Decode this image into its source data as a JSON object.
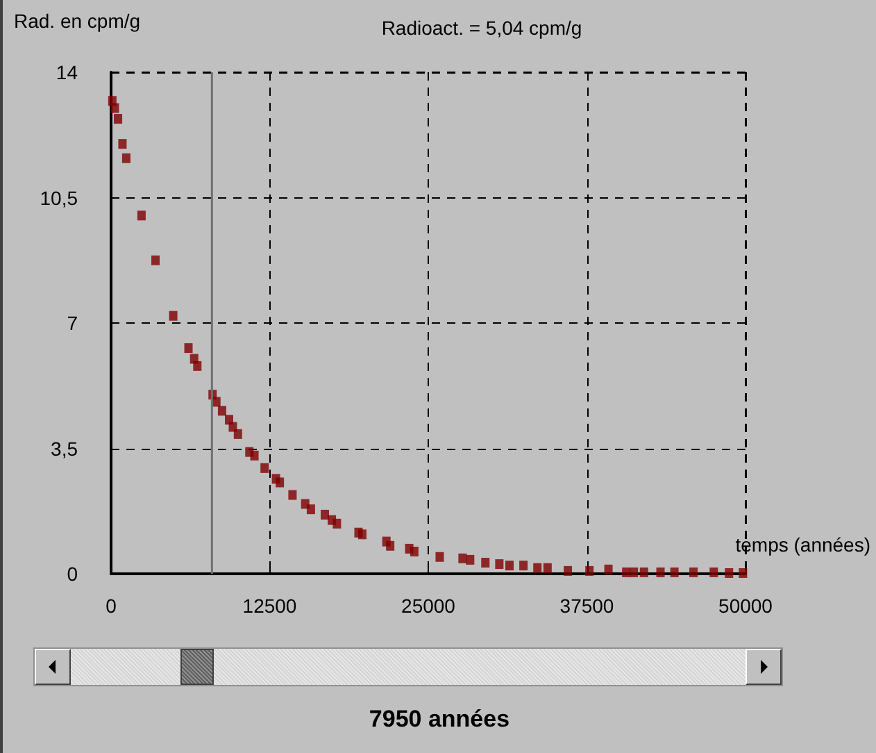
{
  "chart_data": {
    "type": "scatter",
    "title": "Radioact. = 5,04 cpm/g",
    "ylabel": "Rad. en cpm/g",
    "xlabel": "temps (années)",
    "x": [
      100,
      300,
      550,
      900,
      1200,
      2400,
      3500,
      4900,
      6100,
      6550,
      6800,
      8000,
      8300,
      8750,
      9300,
      9600,
      10000,
      10900,
      11300,
      12100,
      13000,
      13300,
      14300,
      15300,
      15750,
      16850,
      17400,
      17800,
      19500,
      19800,
      21700,
      22000,
      23500,
      23900,
      25900,
      27700,
      28300,
      29500,
      30600,
      31400,
      32500,
      33600,
      34400,
      36000,
      37700,
      39200,
      40600,
      41200,
      42000,
      43300,
      44400,
      45900,
      47500,
      48700,
      49800
    ],
    "values": [
      13.2,
      13.0,
      12.7,
      12.0,
      11.6,
      10.0,
      8.75,
      7.2,
      6.3,
      6.0,
      5.8,
      5.0,
      4.8,
      4.55,
      4.3,
      4.1,
      3.9,
      3.4,
      3.3,
      2.95,
      2.65,
      2.55,
      2.2,
      1.95,
      1.8,
      1.65,
      1.5,
      1.4,
      1.15,
      1.1,
      0.9,
      0.78,
      0.7,
      0.62,
      0.47,
      0.43,
      0.39,
      0.31,
      0.27,
      0.23,
      0.23,
      0.16,
      0.16,
      0.08,
      0.08,
      0.12,
      0.04,
      0.04,
      0.04,
      0.04,
      0.04,
      0.04,
      0.04,
      0.02,
      0.02
    ],
    "color": "#800000",
    "marker": "square",
    "xlim": [
      0,
      50000
    ],
    "xticks": [
      0,
      12500,
      25000,
      37500,
      50000
    ],
    "ylim": [
      0,
      14
    ],
    "yticks": [
      0,
      {
        "value": 3.5,
        "label": "3,5"
      },
      7,
      {
        "value": 10.5,
        "label": "10,5"
      },
      14
    ],
    "grid": true,
    "ref_lines": [
      {
        "axis": "x",
        "value": 7950,
        "color": "#707070"
      }
    ],
    "annotations": [
      "7950 années"
    ]
  }
}
